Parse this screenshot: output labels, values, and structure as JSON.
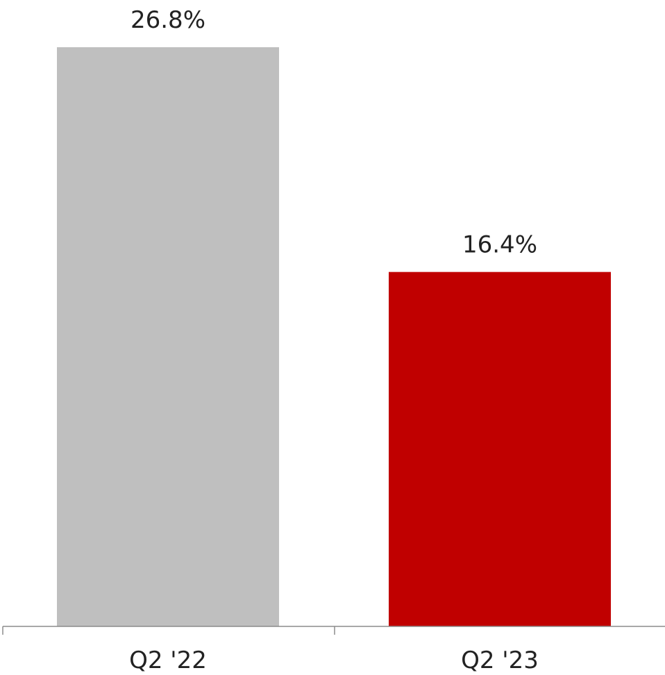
{
  "chart_data": {
    "type": "bar",
    "categories": [
      "Q2 '22",
      "Q2 '23"
    ],
    "values": [
      26.8,
      16.4
    ],
    "data_labels": [
      "26.8%",
      "16.4%"
    ],
    "colors": [
      "#bfbfbf",
      "#c00000"
    ],
    "title": "",
    "xlabel": "",
    "ylabel": "",
    "ylim": [
      0,
      26.8
    ],
    "grid": false,
    "legend": "none"
  }
}
